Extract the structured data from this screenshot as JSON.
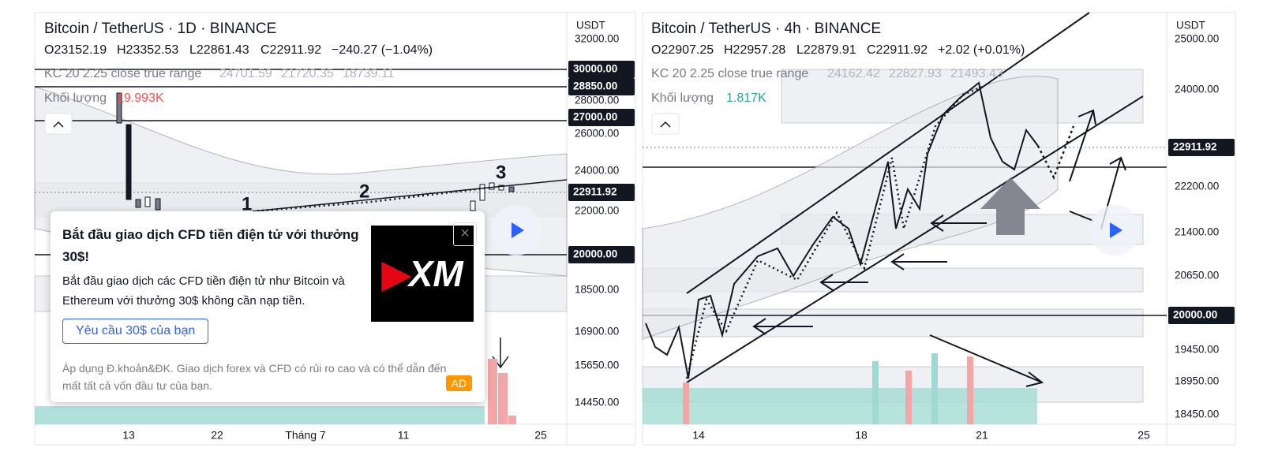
{
  "left_panel": {
    "title": "Bitcoin / TetherUS · 1D · BINANCE",
    "ohlc": [
      "O23152.19",
      "H23352.53",
      "L22861.43",
      "C22911.92",
      "−240.27 (−1.04%)"
    ],
    "indicator": {
      "name": "KC 20 2.25 close true range",
      "values": [
        "24701.59",
        "21720.35",
        "18739.11"
      ]
    },
    "volume": {
      "name": "Khối lượng",
      "value": "19.993K"
    },
    "unit": "USDT",
    "axis_labels": [
      "32000.00",
      "28000.00",
      "26000.00",
      "24000.00",
      "22000.00",
      "18500.00",
      "16900.00",
      "15650.00",
      "14450.00"
    ],
    "highlight_labels": [
      "30000.00",
      "28850.00",
      "27000.00",
      "22911.92",
      "20000.00"
    ],
    "x_labels": [
      "13",
      "22",
      "Tháng 7",
      "11",
      "25"
    ],
    "annotations": [
      "1",
      "2",
      "3"
    ]
  },
  "right_panel": {
    "title": "Bitcoin / TetherUS · 4h · BINANCE",
    "ohlc": [
      "O22907.25",
      "H22957.28",
      "L22879.91",
      "C22911.92",
      "+2.02 (+0.01%)"
    ],
    "indicator": {
      "name": "KC 20 2.25 close true range",
      "values": [
        "24162.42",
        "22827.93",
        "21493.43"
      ]
    },
    "volume": {
      "name": "Khối lượng",
      "value": "1.817K"
    },
    "unit": "USDT",
    "axis_labels": [
      "25000.00",
      "24000.00",
      "22200.00",
      "21400.00",
      "20650.00",
      "19450.00",
      "18950.00",
      "18450.00"
    ],
    "highlight_labels": [
      "22911.92",
      "20000.00"
    ],
    "x_labels": [
      "14",
      "18",
      "21",
      "25"
    ]
  },
  "ad": {
    "title": "Bắt đầu giao dịch CFD tiền điện tử với thưởng 30$!",
    "body": "Bắt đầu giao dịch các CFD tiền điện tử như Bitcoin và Ethereum với thưởng 30$ không cần nạp tiền.",
    "button": "Yêu cầu 30$ của bạn",
    "disclaimer": "Áp dụng Đ.khoản&ĐK. Giao dịch forex và CFD có rủi ro cao và có thể dẫn đến mất tất cả vốn đầu tư của bạn.",
    "tag": "AD",
    "logo": "XM"
  }
}
